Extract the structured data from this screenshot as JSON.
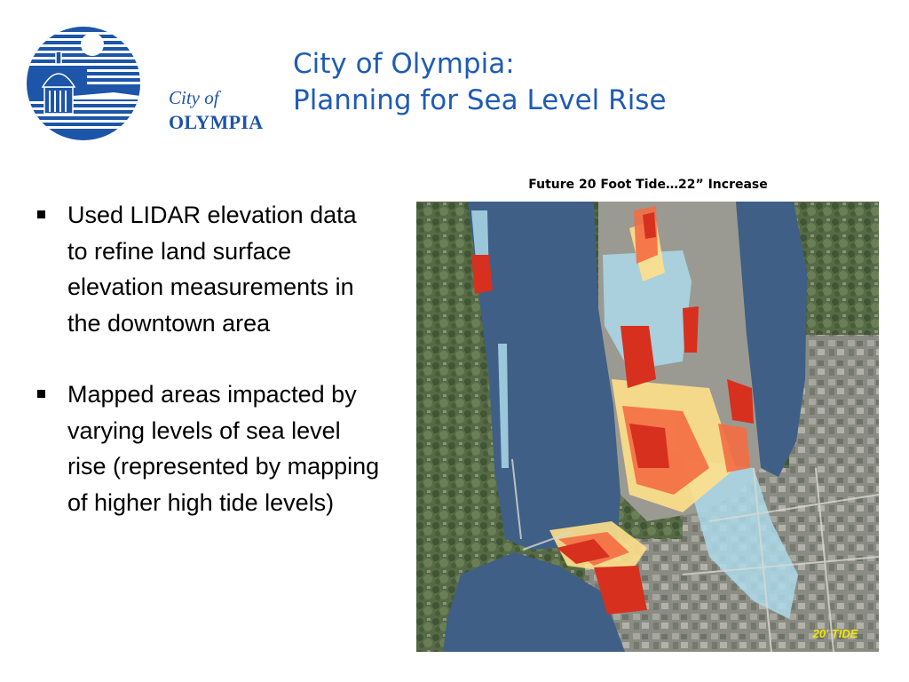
{
  "logo": {
    "line1": "City of",
    "line2": "OLYMPIA"
  },
  "title": {
    "line1": "City of Olympia:",
    "line2": "Planning for Sea Level Rise"
  },
  "bullets": [
    "Used LIDAR elevation data to refine land surface elevation measurements in the downtown area",
    "Mapped areas impacted by varying levels of sea level rise (represented by mapping of higher high tide levels)"
  ],
  "map": {
    "caption": "Future 20 Foot Tide…22” Increase",
    "badge": "20' TIDE"
  },
  "colors": {
    "title_blue": "#1f5cb4",
    "logo_blue": "#1d55a8",
    "water": "#3f5f86",
    "flood_red": "#d7301f",
    "flood_orange": "#f46d43",
    "flood_yellow": "#fee08b",
    "flood_lightblue": "#abd9e9",
    "badge_yellow": "#f3e600"
  }
}
